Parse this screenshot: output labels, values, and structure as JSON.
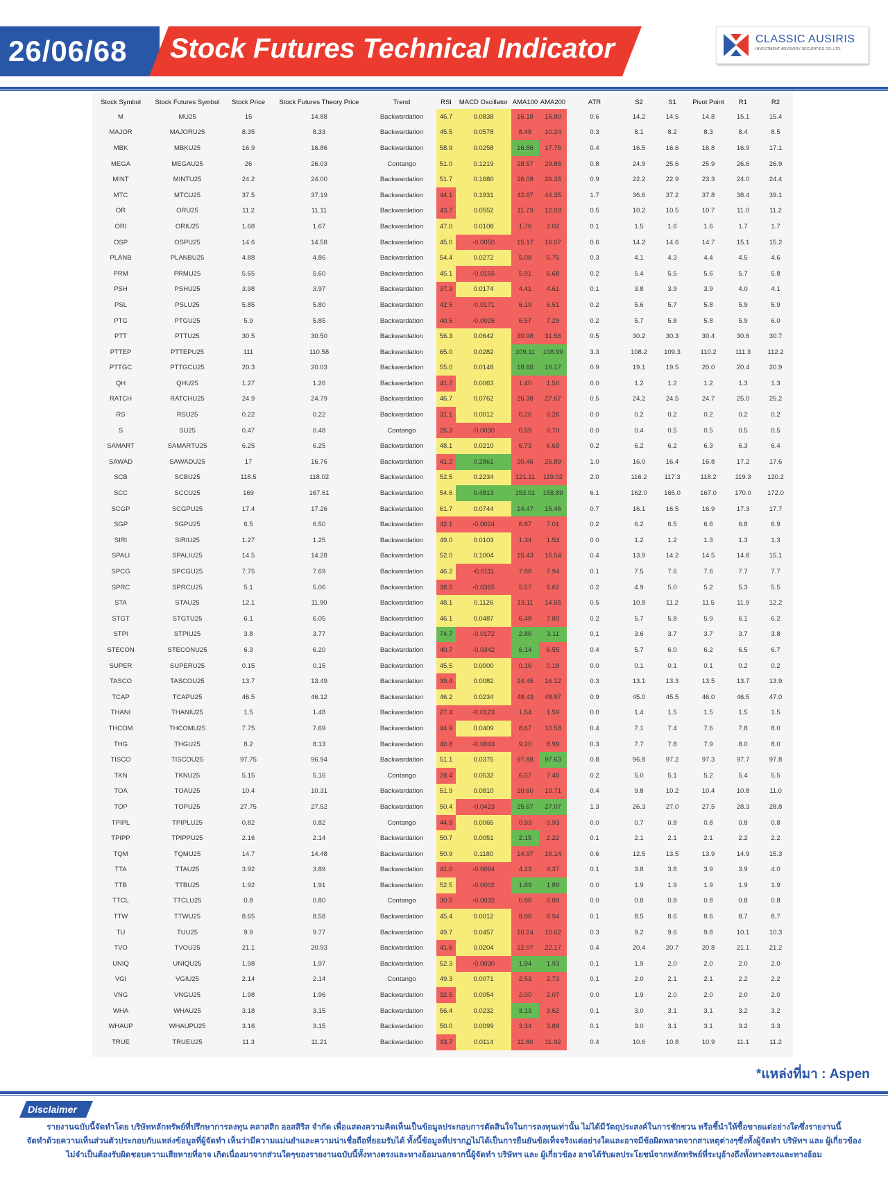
{
  "header": {
    "date": "26/06/68",
    "title": "Stock Futures Technical Indicator",
    "logo_name": "CLASSIC AUSIRIS",
    "logo_sub": "INVESTMENT ADVISORY SECURITIES CO.,LTD."
  },
  "colors": {
    "red": "#f2625e",
    "yellow": "#f7ec7a",
    "green": "#66bb55",
    "blue": "#2a56a8",
    "accent": "#ea3b2e"
  },
  "table": {
    "columns": [
      "Stock Symbol",
      "Stock Futures Symbol",
      "Stock Price",
      "Stock Futures Theory Price",
      "Trend",
      "RSI",
      "MACD Oscillator",
      "AMA100",
      "AMA200",
      "ATR",
      "S2",
      "S1",
      "Pivot Point",
      "R1",
      "R2"
    ],
    "rows": [
      [
        "M",
        "MU25",
        "15",
        "14.88",
        "Backwardation",
        "46.7",
        "0.0838",
        "16.18",
        "16.80",
        "0.6",
        "14.2",
        "14.5",
        "14.8",
        "15.1",
        "15.4"
      ],
      [
        "MAJOR",
        "MAJORU25",
        "8.35",
        "8.33",
        "Backwardation",
        "45.5",
        "0.0578",
        "8.48",
        "10.24",
        "0.3",
        "8.1",
        "8.2",
        "8.3",
        "8.4",
        "8.5"
      ],
      [
        "MBK",
        "MBKU25",
        "16.9",
        "16.86",
        "Backwardation",
        "58.9",
        "0.0258",
        "16.86",
        "17.76",
        "0.4",
        "16.5",
        "16.6",
        "16.8",
        "16.9",
        "17.1"
      ],
      [
        "MEGA",
        "MEGAU25",
        "26",
        "26.03",
        "Contango",
        "51.0",
        "0.1219",
        "28.57",
        "29.88",
        "0.8",
        "24.9",
        "25.6",
        "25.9",
        "26.6",
        "26.9"
      ],
      [
        "MINT",
        "MINTU25",
        "24.2",
        "24.00",
        "Backwardation",
        "51.7",
        "0.1680",
        "26.08",
        "26.26",
        "0.9",
        "22.2",
        "22.9",
        "23.3",
        "24.0",
        "24.4"
      ],
      [
        "MTC",
        "MTCU25",
        "37.5",
        "37.19",
        "Backwardation",
        "44.1",
        "0.1931",
        "42.87",
        "44.35",
        "1.7",
        "36.6",
        "37.2",
        "37.8",
        "38.4",
        "39.1"
      ],
      [
        "OR",
        "ORU25",
        "11.2",
        "11.11",
        "Backwardation",
        "43.7",
        "0.0552",
        "11.73",
        "12.03",
        "0.5",
        "10.2",
        "10.5",
        "10.7",
        "11.0",
        "11.2"
      ],
      [
        "ORI",
        "ORIU25",
        "1.68",
        "1.67",
        "Backwardation",
        "47.0",
        "0.0108",
        "1.76",
        "2.02",
        "0.1",
        "1.5",
        "1.6",
        "1.6",
        "1.7",
        "1.7"
      ],
      [
        "OSP",
        "OSPU25",
        "14.6",
        "14.58",
        "Backwardation",
        "45.0",
        "-0.0050",
        "15.17",
        "16.07",
        "0.6",
        "14.2",
        "14.6",
        "14.7",
        "15.1",
        "15.2"
      ],
      [
        "PLANB",
        "PLANBU25",
        "4.88",
        "4.86",
        "Backwardation",
        "54.4",
        "0.0272",
        "5.08",
        "5.75",
        "0.3",
        "4.1",
        "4.3",
        "4.4",
        "4.5",
        "4.6"
      ],
      [
        "PRM",
        "PRMU25",
        "5.65",
        "5.60",
        "Backwardation",
        "45.1",
        "-0.0155",
        "5.91",
        "6.68",
        "0.2",
        "5.4",
        "5.5",
        "5.6",
        "5.7",
        "5.8"
      ],
      [
        "PSH",
        "PSHU25",
        "3.98",
        "3.97",
        "Backwardation",
        "37.3",
        "0.0174",
        "4.41",
        "4.61",
        "0.1",
        "3.8",
        "3.9",
        "3.9",
        "4.0",
        "4.1"
      ],
      [
        "PSL",
        "PSLU25",
        "5.85",
        "5.80",
        "Backwardation",
        "42.5",
        "-0.0171",
        "6.19",
        "6.51",
        "0.2",
        "5.6",
        "5.7",
        "5.8",
        "5.9",
        "5.9"
      ],
      [
        "PTG",
        "PTGU25",
        "5.9",
        "5.85",
        "Backwardation",
        "40.5",
        "-0.0025",
        "6.57",
        "7.29",
        "0.2",
        "5.7",
        "5.8",
        "5.8",
        "5.9",
        "6.0"
      ],
      [
        "PTT",
        "PTTU25",
        "30.5",
        "30.50",
        "Backwardation",
        "56.3",
        "0.0642",
        "30.98",
        "31.56",
        "0.5",
        "30.2",
        "30.3",
        "30.4",
        "30.6",
        "30.7"
      ],
      [
        "PTTEP",
        "PTTEPU25",
        "111",
        "110.58",
        "Backwardation",
        "65.0",
        "0.0282",
        "109.11",
        "108.99",
        "3.3",
        "108.2",
        "109.3",
        "110.2",
        "111.3",
        "112.2"
      ],
      [
        "PTTGC",
        "PTTGCU25",
        "20.3",
        "20.03",
        "Backwardation",
        "55.0",
        "0.0148",
        "18.88",
        "19.17",
        "0.9",
        "19.1",
        "19.5",
        "20.0",
        "20.4",
        "20.9"
      ],
      [
        "QH",
        "QHU25",
        "1.27",
        "1.26",
        "Backwardation",
        "41.7",
        "0.0063",
        "1.40",
        "1.50",
        "0.0",
        "1.2",
        "1.2",
        "1.2",
        "1.3",
        "1.3"
      ],
      [
        "RATCH",
        "RATCHU25",
        "24.9",
        "24.79",
        "Backwardation",
        "46.7",
        "0.0762",
        "26.38",
        "27.67",
        "0.5",
        "24.2",
        "24.5",
        "24.7",
        "25.0",
        "25.2"
      ],
      [
        "RS",
        "RSU25",
        "0.22",
        "0.22",
        "Backwardation",
        "31.1",
        "0.0012",
        "0.26",
        "0.26",
        "0.0",
        "0.2",
        "0.2",
        "0.2",
        "0.2",
        "0.2"
      ],
      [
        "S",
        "SU25",
        "0.47",
        "0.48",
        "Contango",
        "26.3",
        "-0.0030",
        "0.59",
        "0.70",
        "0.0",
        "0.4",
        "0.5",
        "0.5",
        "0.5",
        "0.5"
      ],
      [
        "SAMART",
        "SAMARTU25",
        "6.25",
        "6.25",
        "Backwardation",
        "48.1",
        "0.0210",
        "6.73",
        "6.69",
        "0.2",
        "6.2",
        "6.2",
        "6.3",
        "6.3",
        "6.4"
      ],
      [
        "SAWAD",
        "SAWADU25",
        "17",
        "16.76",
        "Backwardation",
        "41.2",
        "0.2861",
        "20.46",
        "26.89",
        "1.0",
        "16.0",
        "16.4",
        "16.8",
        "17.2",
        "17.6"
      ],
      [
        "SCB",
        "SCBU25",
        "118.5",
        "118.02",
        "Backwardation",
        "52.5",
        "0.2234",
        "121.11",
        "119.02",
        "2.0",
        "116.2",
        "117.3",
        "118.2",
        "119.3",
        "120.2"
      ],
      [
        "SCC",
        "SCCU25",
        "169",
        "167.61",
        "Backwardation",
        "54.6",
        "0.4813",
        "153.01",
        "158.89",
        "6.1",
        "162.0",
        "165.0",
        "167.0",
        "170.0",
        "172.0"
      ],
      [
        "SCGP",
        "SCGPU25",
        "17.4",
        "17.26",
        "Backwardation",
        "61.7",
        "0.0744",
        "14.47",
        "15.46",
        "0.7",
        "16.1",
        "16.5",
        "16.9",
        "17.3",
        "17.7"
      ],
      [
        "SGP",
        "SGPU25",
        "6.5",
        "6.50",
        "Backwardation",
        "42.1",
        "-0.0024",
        "6.87",
        "7.01",
        "0.2",
        "6.2",
        "6.5",
        "6.6",
        "6.8",
        "6.9"
      ],
      [
        "SIRI",
        "SIRIU25",
        "1.27",
        "1.25",
        "Backwardation",
        "49.0",
        "0.0103",
        "1.34",
        "1.53",
        "0.0",
        "1.2",
        "1.2",
        "1.3",
        "1.3",
        "1.3"
      ],
      [
        "SPALI",
        "SPALIU25",
        "14.5",
        "14.28",
        "Backwardation",
        "52.0",
        "0.1004",
        "15.43",
        "16.54",
        "0.4",
        "13.9",
        "14.2",
        "14.5",
        "14.8",
        "15.1"
      ],
      [
        "SPCG",
        "SPCGU25",
        "7.75",
        "7.69",
        "Backwardation",
        "46.2",
        "-0.0111",
        "7.88",
        "7.94",
        "0.1",
        "7.5",
        "7.6",
        "7.6",
        "7.7",
        "7.7"
      ],
      [
        "SPRC",
        "SPRCU25",
        "5.1",
        "5.06",
        "Backwardation",
        "38.5",
        "-0.0365",
        "5.57",
        "5.62",
        "0.2",
        "4.9",
        "5.0",
        "5.2",
        "5.3",
        "5.5"
      ],
      [
        "STA",
        "STAU25",
        "12.1",
        "11.90",
        "Backwardation",
        "48.1",
        "0.1126",
        "13.11",
        "14.55",
        "0.5",
        "10.8",
        "11.2",
        "11.5",
        "11.9",
        "12.2"
      ],
      [
        "STGT",
        "STGTU25",
        "6.1",
        "6.05",
        "Backwardation",
        "46.1",
        "0.0487",
        "6.48",
        "7.80",
        "0.2",
        "5.7",
        "5.8",
        "5.9",
        "6.1",
        "6.2"
      ],
      [
        "STPI",
        "STPIU25",
        "3.8",
        "3.77",
        "Backwardation",
        "74.7",
        "-0.0172",
        "2.86",
        "3.11",
        "0.1",
        "3.6",
        "3.7",
        "3.7",
        "3.7",
        "3.8"
      ],
      [
        "STECON",
        "STECONU25",
        "6.3",
        "6.20",
        "Backwardation",
        "40.7",
        "-0.0342",
        "6.14",
        "6.55",
        "0.4",
        "5.7",
        "6.0",
        "6.2",
        "6.5",
        "6.7"
      ],
      [
        "SUPER",
        "SUPERU25",
        "0.15",
        "0.15",
        "Backwardation",
        "45.5",
        "0.0000",
        "0.16",
        "0.18",
        "0.0",
        "0.1",
        "0.1",
        "0.1",
        "0.2",
        "0.2"
      ],
      [
        "TASCO",
        "TASCOU25",
        "13.7",
        "13.49",
        "Backwardation",
        "39.4",
        "0.0082",
        "14.45",
        "16.12",
        "0.3",
        "13.1",
        "13.3",
        "13.5",
        "13.7",
        "13.9"
      ],
      [
        "TCAP",
        "TCAPU25",
        "46.5",
        "46.12",
        "Backwardation",
        "46.2",
        "0.0234",
        "48.43",
        "48.97",
        "0.9",
        "45.0",
        "45.5",
        "46.0",
        "46.5",
        "47.0"
      ],
      [
        "THANI",
        "THANIU25",
        "1.5",
        "1.48",
        "Backwardation",
        "27.4",
        "-0.0123",
        "1.54",
        "1.59",
        "0.0",
        "1.4",
        "1.5",
        "1.5",
        "1.5",
        "1.5"
      ],
      [
        "THCOM",
        "THCOMU25",
        "7.75",
        "7.69",
        "Backwardation",
        "44.9",
        "0.0409",
        "8.67",
        "10.58",
        "0.4",
        "7.1",
        "7.4",
        "7.6",
        "7.8",
        "8.0"
      ],
      [
        "THG",
        "THGU25",
        "8.2",
        "8.13",
        "Backwardation",
        "40.8",
        "-0.0043",
        "9.20",
        "8.99",
        "0.3",
        "7.7",
        "7.8",
        "7.9",
        "8.0",
        "8.0"
      ],
      [
        "TISCO",
        "TISCOU25",
        "97.75",
        "96.94",
        "Backwardation",
        "51.1",
        "0.0375",
        "97.88",
        "97.63",
        "0.8",
        "96.8",
        "97.2",
        "97.3",
        "97.7",
        "97.8"
      ],
      [
        "TKN",
        "TKNU25",
        "5.15",
        "5.16",
        "Contango",
        "28.4",
        "0.0532",
        "6.57",
        "7.40",
        "0.2",
        "5.0",
        "5.1",
        "5.2",
        "5.4",
        "5.5"
      ],
      [
        "TOA",
        "TOAU25",
        "10.4",
        "10.31",
        "Backwardation",
        "51.9",
        "0.0810",
        "10.60",
        "10.71",
        "0.4",
        "9.8",
        "10.2",
        "10.4",
        "10.8",
        "11.0"
      ],
      [
        "TOP",
        "TOPU25",
        "27.75",
        "27.52",
        "Backwardation",
        "50.4",
        "-0.0423",
        "25.67",
        "27.07",
        "1.3",
        "26.3",
        "27.0",
        "27.5",
        "28.3",
        "28.8"
      ],
      [
        "TPIPL",
        "TPIPLU25",
        "0.82",
        "0.82",
        "Contango",
        "44.9",
        "0.0065",
        "0.93",
        "0.93",
        "0.0",
        "0.7",
        "0.8",
        "0.8",
        "0.8",
        "0.8"
      ],
      [
        "TPIPP",
        "TPIPPU25",
        "2.16",
        "2.14",
        "Backwardation",
        "50.7",
        "0.0051",
        "2.15",
        "2.22",
        "0.1",
        "2.1",
        "2.1",
        "2.1",
        "2.2",
        "2.2"
      ],
      [
        "TQM",
        "TQMU25",
        "14.7",
        "14.48",
        "Backwardation",
        "50.9",
        "0.1180",
        "14.97",
        "16.14",
        "0.6",
        "12.5",
        "13.5",
        "13.9",
        "14.9",
        "15.3"
      ],
      [
        "TTA",
        "TTAU25",
        "3.92",
        "3.89",
        "Backwardation",
        "41.0",
        "-0.0094",
        "4.23",
        "4.37",
        "0.1",
        "3.8",
        "3.8",
        "3.9",
        "3.9",
        "4.0"
      ],
      [
        "TTB",
        "TTBU25",
        "1.92",
        "1.91",
        "Backwardation",
        "52.5",
        "-0.0002",
        "1.89",
        "1.89",
        "0.0",
        "1.9",
        "1.9",
        "1.9",
        "1.9",
        "1.9"
      ],
      [
        "TTCL",
        "TTCLU25",
        "0.8",
        "0.80",
        "Contango",
        "30.5",
        "-0.0032",
        "0.88",
        "0.89",
        "0.0",
        "0.8",
        "0.8",
        "0.8",
        "0.8",
        "0.8"
      ],
      [
        "TTW",
        "TTWU25",
        "8.65",
        "8.58",
        "Backwardation",
        "45.4",
        "0.0012",
        "8.88",
        "8.94",
        "0.1",
        "8.5",
        "8.6",
        "8.6",
        "8.7",
        "8.7"
      ],
      [
        "TU",
        "TUU25",
        "9.9",
        "9.77",
        "Backwardation",
        "49.7",
        "0.0457",
        "10.24",
        "10.62",
        "0.3",
        "9.2",
        "9.6",
        "9.8",
        "10.1",
        "10.3"
      ],
      [
        "TVO",
        "TVOU25",
        "21.1",
        "20.93",
        "Backwardation",
        "41.6",
        "0.0204",
        "22.07",
        "22.17",
        "0.4",
        "20.4",
        "20.7",
        "20.8",
        "21.1",
        "21.2"
      ],
      [
        "UNIQ",
        "UNIQU25",
        "1.98",
        "1.97",
        "Backwardation",
        "52.3",
        "-0.0030",
        "1.94",
        "1.93",
        "0.1",
        "1.9",
        "2.0",
        "2.0",
        "2.0",
        "2.0"
      ],
      [
        "VGI",
        "VGIU25",
        "2.14",
        "2.14",
        "Contango",
        "49.3",
        "0.0071",
        "2.53",
        "2.73",
        "0.1",
        "2.0",
        "2.1",
        "2.1",
        "2.2",
        "2.2"
      ],
      [
        "VNG",
        "VNGU25",
        "1.98",
        "1.96",
        "Backwardation",
        "32.5",
        "0.0054",
        "2.00",
        "2.07",
        "0.0",
        "1.9",
        "2.0",
        "2.0",
        "2.0",
        "2.0"
      ],
      [
        "WHA",
        "WHAU25",
        "3.18",
        "3.15",
        "Backwardation",
        "56.4",
        "0.0232",
        "3.13",
        "3.62",
        "0.1",
        "3.0",
        "3.1",
        "3.1",
        "3.2",
        "3.2"
      ],
      [
        "WHAUP",
        "WHAUPU25",
        "3.16",
        "3.15",
        "Backwardation",
        "50.0",
        "0.0099",
        "3.34",
        "3.89",
        "0.1",
        "3.0",
        "3.1",
        "3.1",
        "3.2",
        "3.3"
      ],
      [
        "TRUE",
        "TRUEU25",
        "11.3",
        "11.21",
        "Backwardation",
        "43.7",
        "0.0114",
        "11.80",
        "11.92",
        "0.4",
        "10.6",
        "10.8",
        "10.9",
        "11.1",
        "11.2"
      ]
    ]
  },
  "source": "*แหล่งที่มา : Aspen",
  "disclaimer": {
    "label": "Disclaimer",
    "lines": [
      "รายงานฉบับนี้จัดทำโดย บริษัทหลักทรัพย์ที่ปรึกษาการลงทุน คลาสสิก ออสสิริส จำกัด เพื่อแสดงความคิดเห็นเป็นข้อมูลประกอบการตัดสินใจในการลงทุนเท่านั้น ไม่ได้มีวัตถุประสงค์ในการชักชวน หรือชี้นำให้ซื้อขายแต่อย่างใดซึ่งรายงานนี้",
      "จัดทำด้วยความเห็นส่วนตัวประกอบกับแหล่งข้อมูลที่ผู้จัดทำ เห็นว่ามีความแม่นยำและความน่าเชื่อถือที่ยอมรับได้ ทั้งนี้ข้อมูลที่ปรากฏไม่ได้เป็นการยืนยันข้อเท็จจริงแต่อย่างใดและอาจมีข้อผิดพลาดจากสาเหตุต่างๆซึ่งทั้งผู้จัดทำ บริษัทฯ และ ผู้เกี่ยวข้อง",
      "ไม่จำเป็นต้องรับผิดชอบความเสียหายที่อาจ เกิดเนื่องมาจากส่วนใดๆของรายงานฉบับนี้ทั้งทางตรงและทางอ้อมนอกจากนี้ผู้จัดทำ บริษัทฯ และ ผู้เกี่ยวข้อง อาจได้รับผลประโยชน์จากหลักทรัพย์ที่ระบุอ้างถึงทั้งทางตรงและทางอ้อม"
    ]
  }
}
